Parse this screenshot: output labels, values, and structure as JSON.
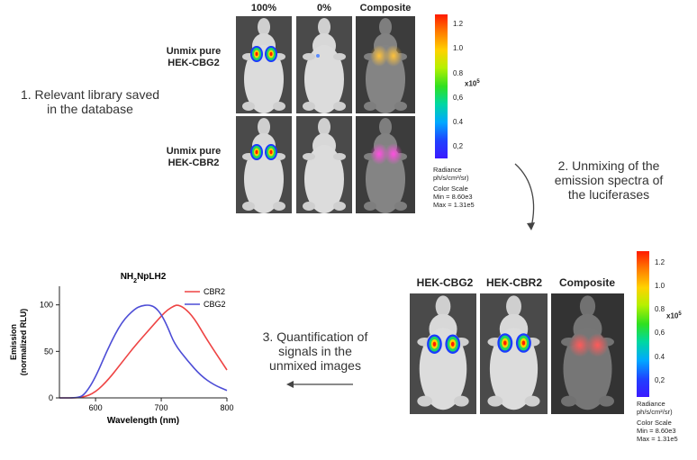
{
  "panel1": {
    "col_headers": [
      "100%",
      "0%",
      "Composite"
    ],
    "row_labels": [
      [
        "Unmix pure",
        "HEK-CBG2"
      ],
      [
        "Unmix pure",
        "HEK-CBR2"
      ]
    ]
  },
  "panel2": {
    "col_headers": [
      "HEK-CBG2",
      "HEK-CBR2",
      "Composite"
    ]
  },
  "colorbar": {
    "ticks": [
      "1.2",
      "1.0",
      "0.8",
      "0,6",
      "0.4",
      "0,2"
    ],
    "exponent": "x10",
    "exponent_power": "5",
    "radiance_label": "Radiance",
    "radiance_units": "ph/s/cm²/sr)",
    "color_scale_label": "Color Scale",
    "min": "Min = 8.60e3",
    "max": "Max = 1.31e5"
  },
  "colorbar2": {
    "ticks": [
      "1.2",
      "1.0",
      "0.8",
      "0,6",
      "0.4",
      "0,2"
    ]
  },
  "steps": {
    "s1": [
      "1. Relevant library saved",
      "in the database"
    ],
    "s2": [
      "2.  Unmixing of the",
      "emission spectra of",
      "the luciferases"
    ],
    "s3": [
      "3. Quantification of",
      "signals in the",
      "unmixed images"
    ]
  },
  "chart_data": {
    "type": "line",
    "title": "NH2NpLH2",
    "xlabel": "Wavelength (nm)",
    "ylabel": "Emission (normalized RLU)",
    "xlim": [
      545,
      800
    ],
    "ylim": [
      0,
      120
    ],
    "x_ticks": [
      600,
      700,
      800
    ],
    "y_ticks": [
      0,
      50,
      100
    ],
    "legend_position": "top-right",
    "series": [
      {
        "name": "CBR2",
        "color": "#ee4444",
        "x": [
          545,
          580,
          600,
          620,
          640,
          660,
          680,
          700,
          710,
          720,
          725,
          735,
          750,
          770,
          800
        ],
        "y": [
          0,
          0,
          6,
          20,
          38,
          56,
          72,
          88,
          95,
          99,
          100,
          97,
          86,
          62,
          30
        ]
      },
      {
        "name": "CBG2",
        "color": "#4d4dd6",
        "x": [
          545,
          575,
          585,
          600,
          620,
          640,
          660,
          670,
          680,
          690,
          700,
          710,
          720,
          740,
          760,
          780,
          800
        ],
        "y": [
          0,
          0,
          5,
          22,
          55,
          82,
          96,
          99,
          100,
          98,
          90,
          76,
          58,
          40,
          24,
          14,
          8
        ]
      }
    ]
  }
}
